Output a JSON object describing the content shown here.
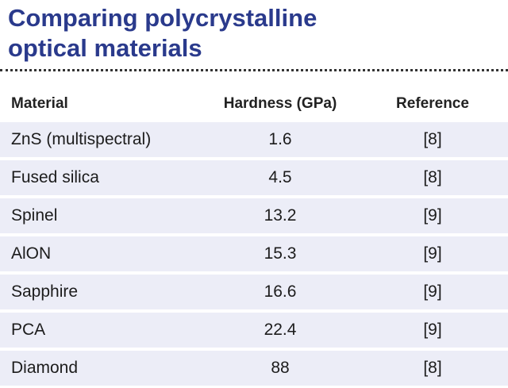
{
  "title": {
    "line1": "Comparing polycrystalline",
    "line2": "optical materials"
  },
  "colors": {
    "title": "#2a3a8c",
    "row_background": "#ecedf7",
    "row_divider": "#ffffff"
  },
  "table": {
    "headers": {
      "material": "Material",
      "hardness": "Hardness (GPa)",
      "reference": "Reference"
    },
    "rows": [
      {
        "material": "ZnS (multispectral)",
        "hardness": "1.6",
        "reference": "[8]"
      },
      {
        "material": "Fused silica",
        "hardness": "4.5",
        "reference": "[8]"
      },
      {
        "material": "Spinel",
        "hardness": "13.2",
        "reference": "[9]"
      },
      {
        "material": "AlON",
        "hardness": "15.3",
        "reference": "[9]"
      },
      {
        "material": "Sapphire",
        "hardness": "16.6",
        "reference": "[9]"
      },
      {
        "material": "PCA",
        "hardness": "22.4",
        "reference": "[9]"
      },
      {
        "material": "Diamond",
        "hardness": "88",
        "reference": "[8]"
      }
    ]
  }
}
